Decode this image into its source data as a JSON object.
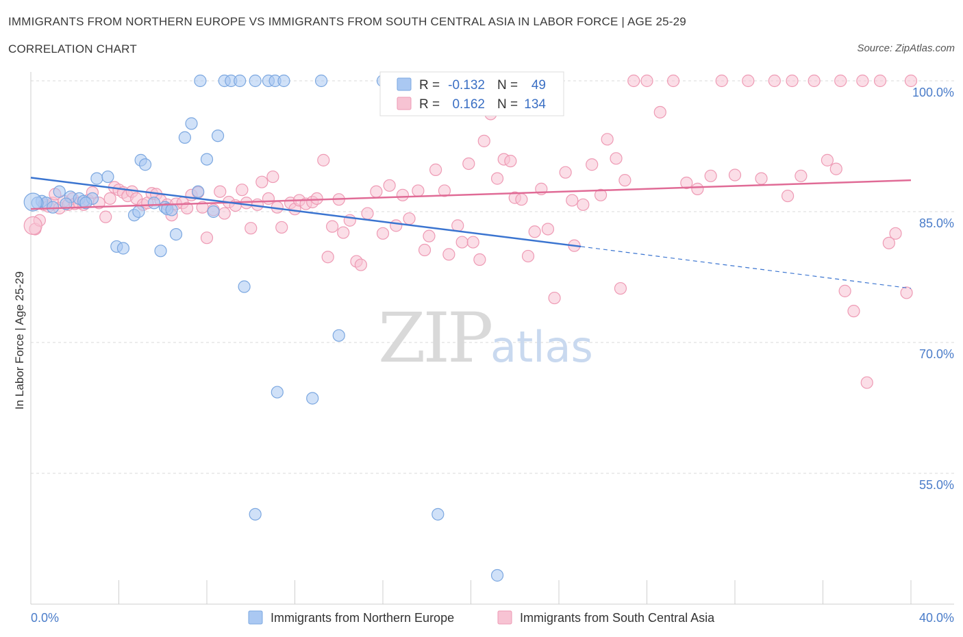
{
  "title": "IMMIGRANTS FROM NORTHERN EUROPE VS IMMIGRANTS FROM SOUTH CENTRAL ASIA IN LABOR FORCE | AGE 25-29",
  "subtitle": "CORRELATION CHART",
  "source": "Source: ZipAtlas.com",
  "watermark": {
    "zip": "ZIP",
    "atlas": "atlas"
  },
  "colors": {
    "blue_fill": "#aac8f2",
    "blue_stroke": "#7ba7e0",
    "blue_line": "#3a74d0",
    "pink_fill": "#f7c3d3",
    "pink_stroke": "#ee9ab4",
    "pink_line": "#e06b96",
    "grid": "#d8d8d8",
    "tick_text": "#4a7cc9"
  },
  "legend": {
    "rows": [
      {
        "r_label": "R =",
        "r_value": "-0.132",
        "n_label": "N =",
        "n_value": "49"
      },
      {
        "r_label": "R =",
        "r_value": "0.162",
        "n_label": "N =",
        "n_value": "134"
      }
    ]
  },
  "chart_data": {
    "type": "scatter",
    "title": "IMMIGRANTS FROM NORTHERN EUROPE VS IMMIGRANTS FROM SOUTH CENTRAL ASIA IN LABOR FORCE | AGE 25-29",
    "xlabel": "",
    "ylabel": "In Labor Force | Age 25-29",
    "xlim": [
      0,
      40
    ],
    "ylim": [
      41,
      101
    ],
    "x_tick_labels": [
      "0.0%",
      "40.0%"
    ],
    "y_ticks": [
      100,
      85,
      70,
      55
    ],
    "y_tick_labels": [
      "100.0%",
      "85.0%",
      "70.0%",
      "55.0%"
    ],
    "grid": true,
    "legend_placement": "top-center",
    "series": [
      {
        "name": "Immigrants from Northern Europe",
        "color": "#aac8f2",
        "trend": {
          "x0": 0,
          "y0": 88.9,
          "x1": 25,
          "y1": 81.0,
          "dashed_to_x": 40,
          "dashed_to_y": 76.2
        },
        "points": [
          [
            0.5,
            86.2
          ],
          [
            0.7,
            86.0
          ],
          [
            1.0,
            85.5
          ],
          [
            1.3,
            87.3
          ],
          [
            1.8,
            86.7
          ],
          [
            2.2,
            86.5
          ],
          [
            2.4,
            86.2
          ],
          [
            2.8,
            86.5
          ],
          [
            3.0,
            88.8
          ],
          [
            3.5,
            89.0
          ],
          [
            3.9,
            81.0
          ],
          [
            4.2,
            80.8
          ],
          [
            4.7,
            84.6
          ],
          [
            5.0,
            90.9
          ],
          [
            5.2,
            90.4
          ],
          [
            5.6,
            86.0
          ],
          [
            5.9,
            80.5
          ],
          [
            6.1,
            85.5
          ],
          [
            6.2,
            85.3
          ],
          [
            6.6,
            82.4
          ],
          [
            7.0,
            93.5
          ],
          [
            7.3,
            95.1
          ],
          [
            7.6,
            87.3
          ],
          [
            7.7,
            100
          ],
          [
            8.0,
            91.0
          ],
          [
            8.5,
            93.7
          ],
          [
            8.8,
            100
          ],
          [
            9.1,
            100
          ],
          [
            9.5,
            100
          ],
          [
            9.7,
            76.4
          ],
          [
            10.2,
            100
          ],
          [
            10.2,
            50.3
          ],
          [
            10.8,
            100
          ],
          [
            11.1,
            100
          ],
          [
            11.5,
            100
          ],
          [
            11.2,
            64.3
          ],
          [
            12.8,
            63.6
          ],
          [
            13.2,
            100
          ],
          [
            14.0,
            70.8
          ],
          [
            16.0,
            100
          ],
          [
            17.5,
            100
          ],
          [
            18.5,
            50.3
          ],
          [
            21.2,
            43.3
          ],
          [
            0.3,
            86.0
          ],
          [
            1.6,
            85.9
          ],
          [
            2.5,
            86.0
          ],
          [
            4.9,
            85.0
          ],
          [
            6.4,
            85.2
          ],
          [
            8.3,
            85.0
          ]
        ]
      },
      {
        "name": "Immigrants from South Central Asia",
        "color": "#f7c3d3",
        "trend": {
          "x0": 0,
          "y0": 85.3,
          "x1": 40,
          "y1": 88.6
        },
        "points": [
          [
            0.2,
            83.0
          ],
          [
            0.4,
            84.0
          ],
          [
            0.6,
            85.8
          ],
          [
            0.8,
            85.6
          ],
          [
            1.0,
            86.0
          ],
          [
            1.3,
            85.4
          ],
          [
            1.5,
            86.2
          ],
          [
            1.7,
            85.8
          ],
          [
            1.9,
            86.5
          ],
          [
            2.0,
            85.9
          ],
          [
            2.2,
            86.0
          ],
          [
            2.4,
            85.8
          ],
          [
            2.6,
            86.3
          ],
          [
            2.8,
            87.2
          ],
          [
            3.1,
            86.0
          ],
          [
            3.4,
            84.4
          ],
          [
            3.6,
            86.5
          ],
          [
            3.8,
            87.8
          ],
          [
            4.0,
            87.5
          ],
          [
            4.2,
            87.2
          ],
          [
            4.4,
            86.8
          ],
          [
            4.6,
            87.3
          ],
          [
            4.8,
            86.5
          ],
          [
            5.1,
            85.8
          ],
          [
            5.3,
            86.0
          ],
          [
            5.5,
            87.1
          ],
          [
            5.7,
            87.0
          ],
          [
            5.9,
            86.3
          ],
          [
            6.2,
            85.8
          ],
          [
            6.4,
            84.6
          ],
          [
            6.6,
            85.9
          ],
          [
            6.9,
            86.0
          ],
          [
            7.1,
            85.4
          ],
          [
            7.3,
            86.9
          ],
          [
            7.6,
            87.2
          ],
          [
            7.8,
            85.5
          ],
          [
            8.0,
            82.0
          ],
          [
            8.3,
            85.2
          ],
          [
            8.6,
            87.3
          ],
          [
            8.8,
            84.8
          ],
          [
            9.0,
            86.1
          ],
          [
            9.3,
            85.7
          ],
          [
            9.6,
            87.5
          ],
          [
            9.8,
            86.0
          ],
          [
            10.0,
            83.1
          ],
          [
            10.3,
            85.8
          ],
          [
            10.5,
            88.4
          ],
          [
            10.8,
            86.5
          ],
          [
            11.0,
            89.0
          ],
          [
            11.2,
            85.5
          ],
          [
            11.4,
            83.2
          ],
          [
            11.8,
            86.0
          ],
          [
            12.0,
            85.3
          ],
          [
            12.2,
            86.3
          ],
          [
            12.5,
            85.9
          ],
          [
            12.8,
            86.1
          ],
          [
            13.0,
            86.5
          ],
          [
            13.3,
            90.9
          ],
          [
            13.5,
            79.8
          ],
          [
            13.7,
            83.3
          ],
          [
            14.0,
            86.4
          ],
          [
            14.2,
            82.6
          ],
          [
            14.5,
            84.0
          ],
          [
            14.8,
            79.3
          ],
          [
            15.0,
            78.9
          ],
          [
            15.3,
            84.8
          ],
          [
            15.7,
            87.3
          ],
          [
            16.0,
            82.5
          ],
          [
            16.3,
            88.0
          ],
          [
            16.6,
            83.4
          ],
          [
            16.9,
            86.9
          ],
          [
            17.2,
            84.2
          ],
          [
            17.6,
            87.4
          ],
          [
            17.9,
            80.6
          ],
          [
            18.1,
            82.2
          ],
          [
            18.4,
            89.8
          ],
          [
            18.8,
            87.4
          ],
          [
            19.0,
            80.1
          ],
          [
            19.4,
            83.4
          ],
          [
            19.6,
            81.5
          ],
          [
            19.9,
            90.5
          ],
          [
            20.1,
            81.5
          ],
          [
            20.4,
            79.5
          ],
          [
            20.6,
            93.1
          ],
          [
            20.9,
            96.2
          ],
          [
            21.2,
            88.8
          ],
          [
            21.5,
            91.0
          ],
          [
            21.8,
            90.8
          ],
          [
            22.0,
            86.6
          ],
          [
            22.3,
            86.4
          ],
          [
            22.6,
            79.9
          ],
          [
            22.9,
            82.7
          ],
          [
            23.2,
            87.6
          ],
          [
            23.5,
            83.0
          ],
          [
            23.8,
            75.1
          ],
          [
            24.3,
            89.5
          ],
          [
            24.7,
            81.1
          ],
          [
            25.1,
            85.8
          ],
          [
            25.5,
            90.4
          ],
          [
            25.9,
            86.9
          ],
          [
            26.2,
            93.3
          ],
          [
            26.6,
            91.1
          ],
          [
            26.8,
            76.2
          ],
          [
            27.0,
            88.6
          ],
          [
            27.4,
            100
          ],
          [
            28.0,
            100
          ],
          [
            28.6,
            96.4
          ],
          [
            29.2,
            100
          ],
          [
            29.8,
            88.3
          ],
          [
            30.3,
            87.6
          ],
          [
            30.9,
            89.1
          ],
          [
            31.4,
            100
          ],
          [
            32.0,
            89.2
          ],
          [
            32.6,
            100
          ],
          [
            33.2,
            88.8
          ],
          [
            33.8,
            100
          ],
          [
            34.4,
            86.8
          ],
          [
            35.0,
            89.1
          ],
          [
            35.6,
            100
          ],
          [
            36.2,
            90.9
          ],
          [
            36.6,
            89.9
          ],
          [
            37.0,
            75.9
          ],
          [
            37.4,
            73.6
          ],
          [
            38.0,
            65.4
          ],
          [
            38.6,
            100
          ],
          [
            39.0,
            81.4
          ],
          [
            39.3,
            82.5
          ],
          [
            40.0,
            100
          ],
          [
            39.8,
            75.7
          ],
          [
            34.6,
            100
          ],
          [
            36.8,
            100
          ],
          [
            37.8,
            100
          ],
          [
            1.1,
            87.0
          ],
          [
            24.6,
            86.3
          ]
        ]
      }
    ]
  },
  "bottom_legend": [
    {
      "label": "Immigrants from Northern Europe"
    },
    {
      "label": "Immigrants from South Central Asia"
    }
  ]
}
